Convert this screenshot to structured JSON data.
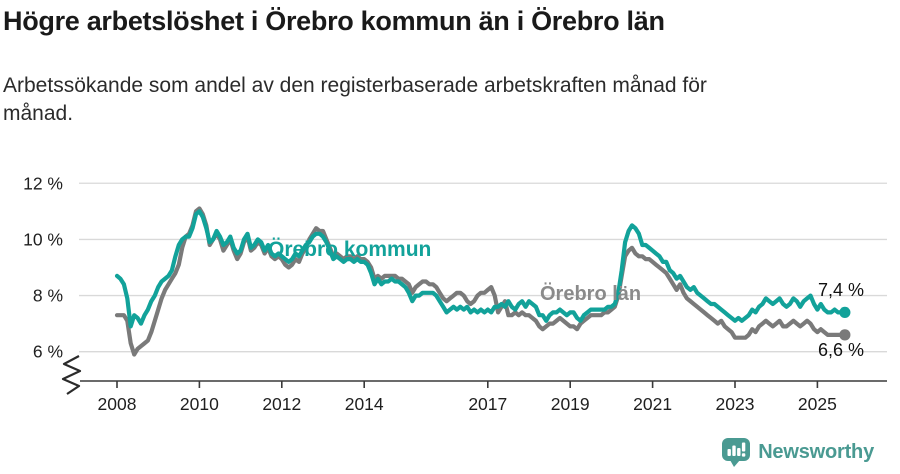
{
  "title": "Högre arbetslöshet i Örebro kommun än i Örebro län",
  "subtitle_lines": [
    "Arbetssökande som andel av den registerbaserade arbetskraften månad för",
    "månad."
  ],
  "colors": {
    "kommun_line": "#12a29a",
    "lan_line": "#7a7a7a",
    "lan_label": "#8a8a8a",
    "grid": "#d9d9d9",
    "axis": "#3a3a3a",
    "value_label": "#111111",
    "logo_teal": "#4a9a92"
  },
  "footer": {
    "logo_text": "Newsworthy"
  },
  "chart_data": {
    "type": "line",
    "title": "Högre arbetslöshet i Örebro kommun än i Örebro län",
    "xlabel": "",
    "ylabel": "",
    "x_start_year": 2008,
    "x_start_month": 1,
    "x_end_year": 2025,
    "x_end_month": 9,
    "x_tick_years": [
      2008,
      2010,
      2012,
      2014,
      2017,
      2019,
      2021,
      2023,
      2025
    ],
    "y_tick_labels": [
      "12 %",
      "10 %",
      "8 %",
      "6 %"
    ],
    "y_tick_values": [
      12,
      10,
      8,
      6
    ],
    "ylim": [
      6,
      12
    ],
    "y_axis_break": true,
    "grid": true,
    "legend_position": "inline-labels",
    "series": [
      {
        "name": "Örebro kommun",
        "end_label": "7,4 %",
        "end_value": 7.4,
        "values": [
          8.7,
          8.6,
          8.4,
          7.9,
          6.9,
          7.3,
          7.2,
          7.0,
          7.3,
          7.5,
          7.8,
          8.0,
          8.3,
          8.5,
          8.6,
          8.7,
          8.9,
          9.4,
          9.8,
          10.0,
          10.1,
          10.1,
          10.4,
          10.9,
          11.0,
          10.8,
          10.4,
          9.9,
          10.0,
          10.3,
          10.1,
          9.8,
          9.9,
          10.1,
          9.7,
          9.5,
          9.6,
          10.0,
          10.2,
          9.7,
          9.8,
          10.0,
          9.9,
          9.6,
          9.8,
          9.5,
          9.4,
          9.5,
          9.4,
          9.3,
          9.2,
          9.3,
          9.5,
          9.4,
          9.6,
          9.8,
          9.9,
          10.1,
          10.2,
          10.2,
          10.1,
          9.9,
          9.6,
          9.3,
          9.4,
          9.3,
          9.2,
          9.3,
          9.3,
          9.2,
          9.3,
          9.2,
          9.2,
          9.1,
          8.8,
          8.4,
          8.6,
          8.4,
          8.5,
          8.5,
          8.6,
          8.5,
          8.5,
          8.4,
          8.3,
          8.1,
          7.8,
          8.0,
          8.0,
          8.1,
          8.1,
          8.1,
          8.1,
          8.0,
          7.8,
          7.6,
          7.4,
          7.5,
          7.6,
          7.5,
          7.6,
          7.5,
          7.6,
          7.4,
          7.5,
          7.4,
          7.5,
          7.4,
          7.5,
          7.4,
          7.6,
          7.6,
          7.7,
          7.6,
          7.8,
          7.6,
          7.5,
          7.7,
          7.8,
          7.6,
          7.8,
          7.7,
          7.6,
          7.3,
          7.3,
          7.1,
          7.3,
          7.4,
          7.4,
          7.5,
          7.4,
          7.3,
          7.4,
          7.4,
          7.2,
          7.1,
          7.3,
          7.4,
          7.5,
          7.5,
          7.5,
          7.5,
          7.5,
          7.6,
          7.6,
          7.7,
          8.1,
          8.9,
          9.9,
          10.3,
          10.5,
          10.4,
          10.2,
          9.8,
          9.8,
          9.7,
          9.6,
          9.5,
          9.4,
          9.2,
          9.2,
          8.9,
          8.8,
          8.6,
          8.7,
          8.5,
          8.3,
          8.2,
          8.3,
          8.1,
          8.0,
          7.9,
          7.8,
          7.7,
          7.7,
          7.6,
          7.5,
          7.4,
          7.3,
          7.2,
          7.1,
          7.2,
          7.1,
          7.2,
          7.3,
          7.5,
          7.4,
          7.6,
          7.7,
          7.9,
          7.8,
          7.7,
          7.8,
          7.9,
          7.7,
          7.6,
          7.7,
          7.9,
          7.8,
          7.6,
          7.8,
          7.9,
          8.0,
          7.7,
          7.5,
          7.7,
          7.5,
          7.4,
          7.4,
          7.5,
          7.4,
          7.4,
          7.4
        ]
      },
      {
        "name": "Örebro län",
        "end_label": "6,6 %",
        "end_value": 6.6,
        "values": [
          7.3,
          7.3,
          7.3,
          7.1,
          6.3,
          5.9,
          6.1,
          6.2,
          6.3,
          6.4,
          6.7,
          7.1,
          7.5,
          7.9,
          8.2,
          8.4,
          8.6,
          8.8,
          9.1,
          9.7,
          10.1,
          10.2,
          10.5,
          11.0,
          11.1,
          10.9,
          10.5,
          9.8,
          10.0,
          10.2,
          10.0,
          9.6,
          9.8,
          10.0,
          9.6,
          9.3,
          9.5,
          9.9,
          10.1,
          9.6,
          9.7,
          9.9,
          9.8,
          9.5,
          9.7,
          9.4,
          9.3,
          9.4,
          9.3,
          9.1,
          9.0,
          9.1,
          9.3,
          9.2,
          9.5,
          9.7,
          10.0,
          10.2,
          10.4,
          10.3,
          10.3,
          10.0,
          9.7,
          9.4,
          9.5,
          9.4,
          9.3,
          9.4,
          9.4,
          9.3,
          9.4,
          9.3,
          9.3,
          9.2,
          9.0,
          8.6,
          8.7,
          8.6,
          8.7,
          8.7,
          8.7,
          8.7,
          8.6,
          8.6,
          8.5,
          8.4,
          8.1,
          8.3,
          8.4,
          8.5,
          8.5,
          8.4,
          8.4,
          8.3,
          8.1,
          7.9,
          7.8,
          7.9,
          8.0,
          8.1,
          8.1,
          8.0,
          7.8,
          7.7,
          7.8,
          8.0,
          8.1,
          8.1,
          8.2,
          8.3,
          8.0,
          7.4,
          7.6,
          7.8,
          7.3,
          7.3,
          7.4,
          7.3,
          7.4,
          7.3,
          7.3,
          7.2,
          7.1,
          6.9,
          6.8,
          6.9,
          7.0,
          7.0,
          7.1,
          7.2,
          7.1,
          7.0,
          6.9,
          6.9,
          6.8,
          7.0,
          7.1,
          7.2,
          7.3,
          7.3,
          7.3,
          7.3,
          7.4,
          7.4,
          7.5,
          7.6,
          8.0,
          8.7,
          9.4,
          9.6,
          9.7,
          9.5,
          9.4,
          9.4,
          9.3,
          9.3,
          9.2,
          9.1,
          9.0,
          8.9,
          8.8,
          8.6,
          8.4,
          8.2,
          8.4,
          8.1,
          7.9,
          7.8,
          7.7,
          7.6,
          7.5,
          7.4,
          7.3,
          7.2,
          7.1,
          7.0,
          7.1,
          6.9,
          6.8,
          6.7,
          6.5,
          6.5,
          6.5,
          6.5,
          6.6,
          6.8,
          6.7,
          6.9,
          7.0,
          7.1,
          7.0,
          6.9,
          7.0,
          7.1,
          6.9,
          6.9,
          7.0,
          7.1,
          7.0,
          6.9,
          7.0,
          7.1,
          7.0,
          6.8,
          6.7,
          6.8,
          6.7,
          6.6,
          6.6,
          6.6,
          6.6,
          6.6,
          6.6
        ]
      }
    ]
  }
}
